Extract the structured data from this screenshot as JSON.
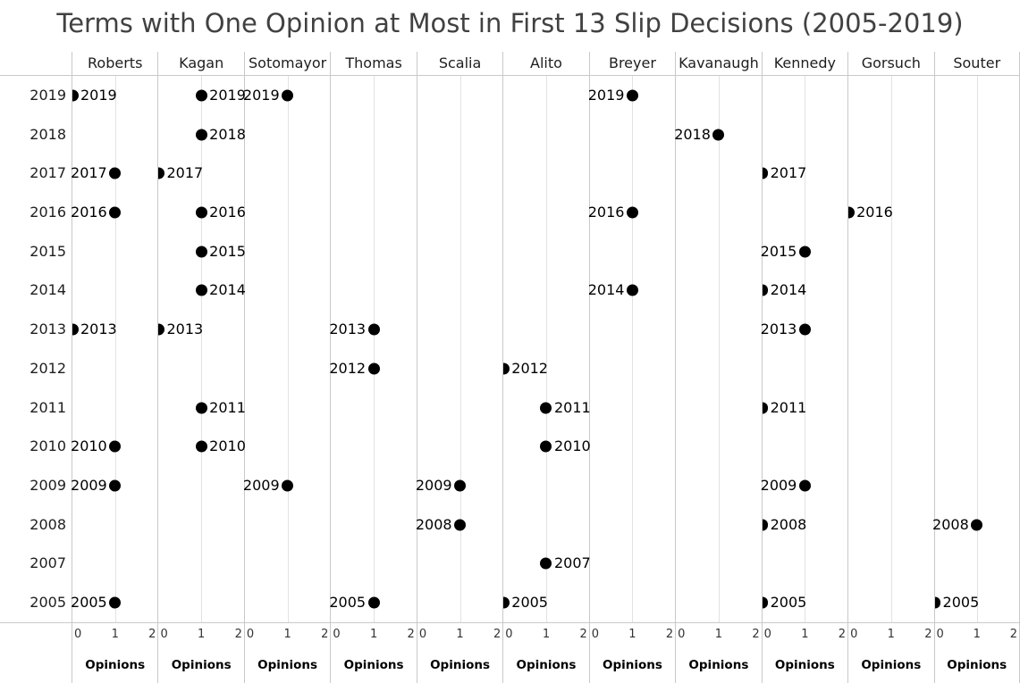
{
  "title": "Terms with One Opinion at Most in First 13 Slip Decisions (2005-2019)",
  "colors": {
    "dot": "#000000",
    "mark_label": "#000000",
    "pane_border": "#c9c9c9",
    "gridline": "#e2e2e2",
    "title_text": "#414141",
    "header_text": "#1e1e1e",
    "tick_text": "#333333",
    "axis_label_text": "#000000"
  },
  "chart_data": {
    "type": "scatter",
    "title": "Terms with One Opinion at Most in First 13 Slip Decisions (2005-2019)",
    "layout": "small-multiples: one column per justice, shared year rows, dot marks labeled with year",
    "x_axis": {
      "label": "Opinions",
      "ticks": [
        "0",
        "1",
        "2"
      ],
      "range": [
        0,
        2
      ],
      "grid": true
    },
    "y_axis": {
      "categories": [
        "2019",
        "2018",
        "2017",
        "2016",
        "2015",
        "2014",
        "2013",
        "2012",
        "2011",
        "2010",
        "2009",
        "2008",
        "2007",
        "2005"
      ]
    },
    "facets": [
      {
        "justice": "Roberts",
        "marks": [
          {
            "year": "2019",
            "opinions": 0,
            "label_side": "right"
          },
          {
            "year": "2017",
            "opinions": 1,
            "label_side": "left"
          },
          {
            "year": "2016",
            "opinions": 1,
            "label_side": "left"
          },
          {
            "year": "2013",
            "opinions": 0,
            "label_side": "right"
          },
          {
            "year": "2010",
            "opinions": 1,
            "label_side": "left"
          },
          {
            "year": "2009",
            "opinions": 1,
            "label_side": "left"
          },
          {
            "year": "2005",
            "opinions": 1,
            "label_side": "left"
          }
        ]
      },
      {
        "justice": "Kagan",
        "marks": [
          {
            "year": "2019",
            "opinions": 1,
            "label_side": "right"
          },
          {
            "year": "2018",
            "opinions": 1,
            "label_side": "right"
          },
          {
            "year": "2017",
            "opinions": 0,
            "label_side": "right"
          },
          {
            "year": "2016",
            "opinions": 1,
            "label_side": "right"
          },
          {
            "year": "2015",
            "opinions": 1,
            "label_side": "right"
          },
          {
            "year": "2014",
            "opinions": 1,
            "label_side": "right"
          },
          {
            "year": "2013",
            "opinions": 0,
            "label_side": "right"
          },
          {
            "year": "2011",
            "opinions": 1,
            "label_side": "right"
          },
          {
            "year": "2010",
            "opinions": 1,
            "label_side": "right"
          }
        ]
      },
      {
        "justice": "Sotomayor",
        "marks": [
          {
            "year": "2019",
            "opinions": 1,
            "label_side": "left"
          },
          {
            "year": "2009",
            "opinions": 1,
            "label_side": "left"
          }
        ]
      },
      {
        "justice": "Thomas",
        "marks": [
          {
            "year": "2013",
            "opinions": 1,
            "label_side": "left"
          },
          {
            "year": "2012",
            "opinions": 1,
            "label_side": "left"
          },
          {
            "year": "2005",
            "opinions": 1,
            "label_side": "left"
          }
        ]
      },
      {
        "justice": "Scalia",
        "marks": [
          {
            "year": "2009",
            "opinions": 1,
            "label_side": "left"
          },
          {
            "year": "2008",
            "opinions": 1,
            "label_side": "left"
          }
        ]
      },
      {
        "justice": "Alito",
        "marks": [
          {
            "year": "2012",
            "opinions": 0,
            "label_side": "right"
          },
          {
            "year": "2011",
            "opinions": 1,
            "label_side": "right"
          },
          {
            "year": "2010",
            "opinions": 1,
            "label_side": "right"
          },
          {
            "year": "2007",
            "opinions": 1,
            "label_side": "right"
          },
          {
            "year": "2005",
            "opinions": 0,
            "label_side": "right"
          }
        ]
      },
      {
        "justice": "Breyer",
        "marks": [
          {
            "year": "2019",
            "opinions": 1,
            "label_side": "left"
          },
          {
            "year": "2016",
            "opinions": 1,
            "label_side": "left"
          },
          {
            "year": "2014",
            "opinions": 1,
            "label_side": "left"
          }
        ]
      },
      {
        "justice": "Kavanaugh",
        "marks": [
          {
            "year": "2018",
            "opinions": 1,
            "label_side": "left"
          }
        ]
      },
      {
        "justice": "Kennedy",
        "marks": [
          {
            "year": "2017",
            "opinions": 0,
            "label_side": "right"
          },
          {
            "year": "2015",
            "opinions": 1,
            "label_side": "left"
          },
          {
            "year": "2014",
            "opinions": 0,
            "label_side": "right"
          },
          {
            "year": "2013",
            "opinions": 1,
            "label_side": "left"
          },
          {
            "year": "2011",
            "opinions": 0,
            "label_side": "right"
          },
          {
            "year": "2009",
            "opinions": 1,
            "label_side": "left"
          },
          {
            "year": "2008",
            "opinions": 0,
            "label_side": "right"
          },
          {
            "year": "2005",
            "opinions": 0,
            "label_side": "right"
          }
        ]
      },
      {
        "justice": "Gorsuch",
        "marks": [
          {
            "year": "2016",
            "opinions": 0,
            "label_side": "right"
          }
        ]
      },
      {
        "justice": "Souter",
        "marks": [
          {
            "year": "2008",
            "opinions": 1,
            "label_side": "left"
          },
          {
            "year": "2005",
            "opinions": 0,
            "label_side": "right"
          }
        ]
      }
    ]
  }
}
